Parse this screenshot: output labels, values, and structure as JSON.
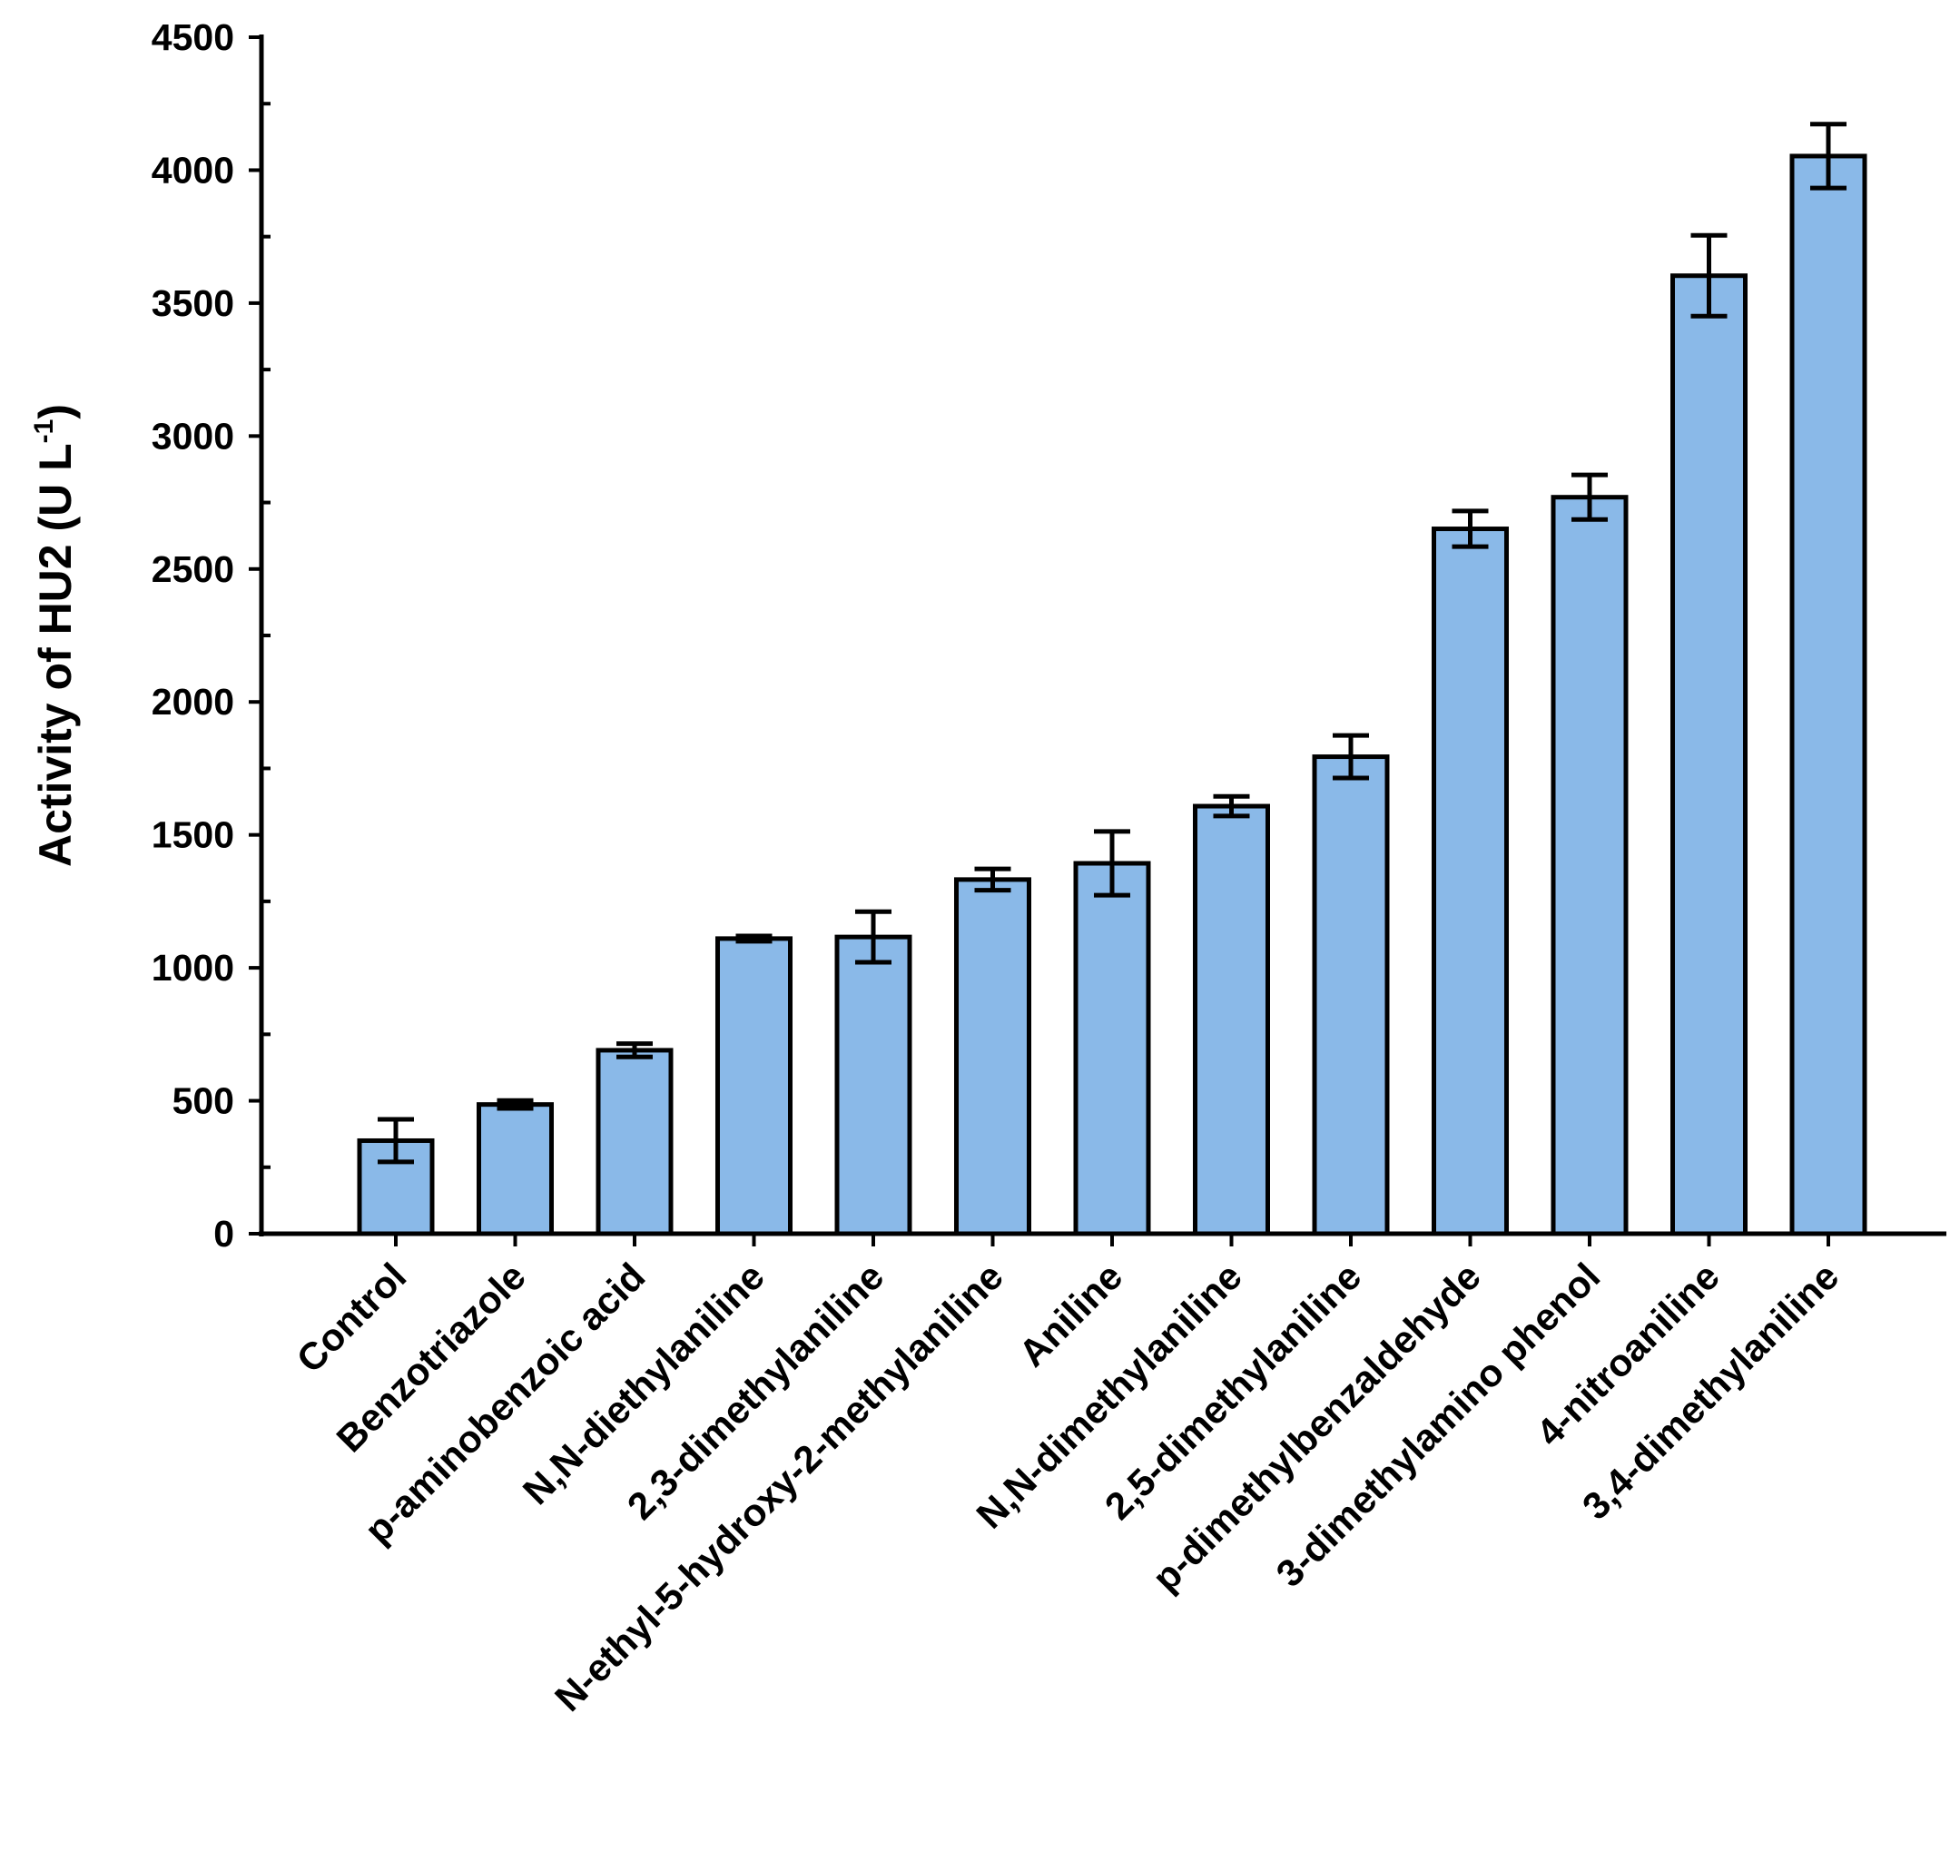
{
  "chart_data": {
    "type": "bar",
    "title": "",
    "xlabel": "",
    "ylabel": "Activity of HU2 (U L",
    "ylabel_superscript": "-1",
    "ylabel_close": ")",
    "ylim": [
      0,
      4500
    ],
    "yticks": [
      0,
      500,
      1000,
      1500,
      2000,
      2500,
      3000,
      3500,
      4000,
      4500
    ],
    "grid": false,
    "legend": "none",
    "bar_color": "#8ab9e8",
    "categories": [
      "Control",
      "Benzotriazole",
      "p-aminobenzoic acid",
      "N,N-diethylaniline",
      "2,3-dimethylaniline",
      "N-ethyl-5-hydroxy-2-methylaniline",
      "Aniline",
      "N,N-dimethylaniline",
      "2,5-dimethylaniline",
      "p-dimethylbenzaldehyde",
      "3-dimethylamino phenol",
      "4-nitroaniline",
      "3,4-dimethylaniline"
    ],
    "values": [
      350,
      486,
      690,
      1110,
      1116,
      1332,
      1393,
      1608,
      1794,
      2651,
      2770,
      3603,
      4053
    ],
    "errors": [
      80,
      15,
      25,
      10,
      95,
      40,
      120,
      37,
      80,
      67,
      84,
      152,
      120
    ]
  }
}
